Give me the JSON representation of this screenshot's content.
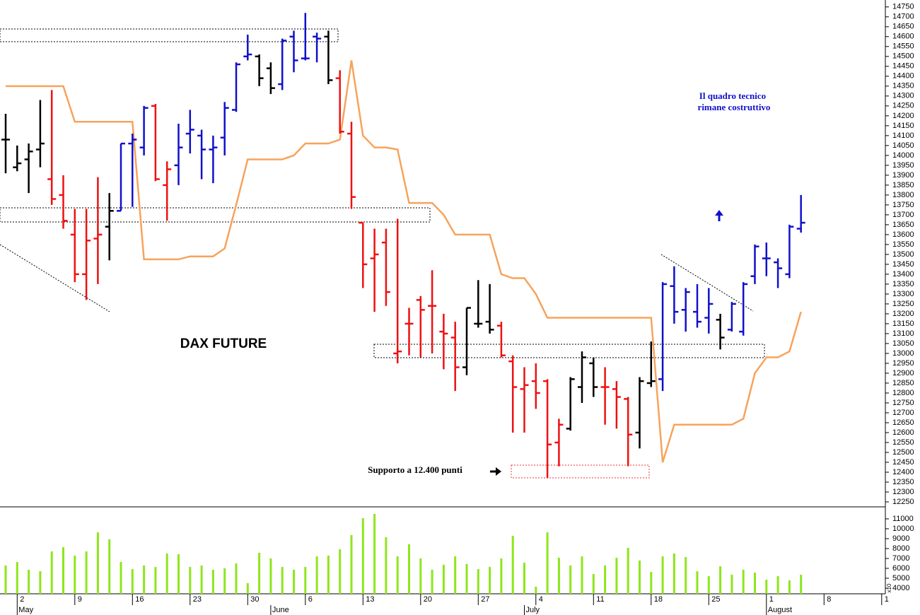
{
  "chart_data": [
    {
      "type": "ohlc",
      "title": "DAX FUTURE",
      "note": [
        "Il quadro tecnico",
        "rimane costruttivo"
      ],
      "support_note": "Supporto a 12.400 punti",
      "open": [
        14080,
        13940,
        13980,
        14030,
        13880,
        13800,
        13600,
        13400,
        13580,
        13640,
        13720,
        14060,
        14040,
        14250,
        13850,
        13950,
        14110,
        14100,
        14030,
        14090,
        14230,
        14500,
        14500,
        14440,
        14360,
        14600,
        14490,
        14600,
        14600,
        14390,
        14110,
        13660,
        13480,
        13560,
        13000,
        13150,
        13270,
        13240,
        13110,
        13080,
        12930,
        13150,
        13160,
        13140,
        12960,
        12820,
        12860,
        12860,
        12550,
        12620,
        12830,
        12950,
        12830,
        12820,
        12770,
        12600,
        12850,
        12870,
        13340,
        13220,
        13210,
        13180,
        13170,
        13120,
        13110,
        13390,
        13480,
        13460,
        13400,
        13630
      ],
      "high": [
        14210,
        14050,
        14060,
        14280,
        14330,
        13900,
        13730,
        13730,
        13890,
        13810,
        14060,
        14110,
        14250,
        14260,
        13970,
        14160,
        14230,
        14130,
        14100,
        14270,
        14470,
        14610,
        14510,
        14470,
        14590,
        14630,
        14720,
        14620,
        14630,
        14430,
        14170,
        13660,
        13630,
        13630,
        13680,
        13230,
        13290,
        13420,
        13200,
        13160,
        13230,
        13370,
        13350,
        13160,
        12990,
        12930,
        12950,
        12870,
        12670,
        12880,
        13010,
        12980,
        12930,
        12860,
        12780,
        12880,
        13060,
        13360,
        13440,
        13330,
        13350,
        13330,
        13200,
        13260,
        13360,
        13550,
        13560,
        13480,
        13650,
        13800
      ],
      "low": [
        13910,
        13920,
        13810,
        13940,
        13750,
        13630,
        13360,
        13270,
        13350,
        13470,
        13720,
        13740,
        14000,
        13870,
        13670,
        13850,
        14010,
        13880,
        13860,
        14000,
        14220,
        14480,
        14350,
        14310,
        14330,
        14420,
        14480,
        14470,
        14360,
        14110,
        13730,
        13330,
        13210,
        13240,
        12950,
        12990,
        12980,
        13000,
        12920,
        12810,
        12890,
        13130,
        13100,
        12980,
        12600,
        12600,
        12720,
        12370,
        12430,
        12610,
        12750,
        12780,
        12640,
        12620,
        12430,
        12520,
        12830,
        12810,
        13150,
        13110,
        13130,
        13100,
        13020,
        13110,
        13090,
        13350,
        13390,
        13330,
        13380,
        13610
      ],
      "close": [
        14080,
        13960,
        14020,
        14060,
        13780,
        13670,
        13400,
        13570,
        13600,
        13720,
        14060,
        14080,
        14240,
        13880,
        13930,
        14040,
        14130,
        14030,
        14040,
        14240,
        14460,
        14510,
        14390,
        14340,
        14580,
        14480,
        14490,
        14590,
        14380,
        14120,
        13790,
        13450,
        13500,
        13310,
        13010,
        13150,
        13220,
        13240,
        13100,
        12930,
        13230,
        13150,
        13120,
        12990,
        12830,
        12840,
        12800,
        12540,
        12640,
        12870,
        12980,
        12830,
        12830,
        12780,
        12590,
        12860,
        12860,
        13350,
        13210,
        13310,
        13160,
        13250,
        13080,
        13250,
        13350,
        13540,
        13480,
        13430,
        13640,
        13660
      ],
      "colors": [
        "#000000",
        "#000000",
        "#000000",
        "#000000",
        "#ee1111",
        "#ee1111",
        "#ee1111",
        "#ee1111",
        "#ee1111",
        "#000000",
        "#1010cc",
        "#1010cc",
        "#1010cc",
        "#ee1111",
        "#ee1111",
        "#1010cc",
        "#1010cc",
        "#1010cc",
        "#1010cc",
        "#1010cc",
        "#1010cc",
        "#1010cc",
        "#000000",
        "#000000",
        "#1010cc",
        "#1010cc",
        "#1010cc",
        "#1010cc",
        "#000000",
        "#ee1111",
        "#ee1111",
        "#ee1111",
        "#ee1111",
        "#ee1111",
        "#ee1111",
        "#ee1111",
        "#ee1111",
        "#ee1111",
        "#ee1111",
        "#ee1111",
        "#000000",
        "#000000",
        "#000000",
        "#ee1111",
        "#ee1111",
        "#ee1111",
        "#ee1111",
        "#ee1111",
        "#ee1111",
        "#000000",
        "#000000",
        "#000000",
        "#ee1111",
        "#ee1111",
        "#ee1111",
        "#000000",
        "#000000",
        "#1010cc",
        "#1010cc",
        "#1010cc",
        "#1010cc",
        "#1010cc",
        "#000000",
        "#1010cc",
        "#1010cc",
        "#1010cc",
        "#1010cc",
        "#1010cc",
        "#1010cc",
        "#1010cc"
      ],
      "line": {
        "color": "#f7a35c",
        "values": [
          14350,
          14350,
          14350,
          14350,
          14350,
          14350,
          14170,
          14170,
          14170,
          14170,
          14170,
          14170,
          13475,
          13475,
          13475,
          13475,
          13490,
          13490,
          13490,
          13530,
          13750,
          13980,
          13980,
          13980,
          13980,
          14000,
          14060,
          14060,
          14060,
          14080,
          14480,
          14100,
          14040,
          14040,
          14030,
          13760,
          13760,
          13760,
          13700,
          13600,
          13600,
          13600,
          13600,
          13400,
          13380,
          13380,
          13300,
          13180,
          13180,
          13180,
          13180,
          13180,
          13180,
          13180,
          13180,
          13180,
          13180,
          12450,
          12640,
          12640,
          12640,
          12640,
          12640,
          12640,
          12670,
          12900,
          12980,
          12980,
          13010,
          13210
        ]
      },
      "ylim": [
        12225,
        14785
      ],
      "yticks": [
        12250,
        12300,
        12350,
        12400,
        12450,
        12500,
        12550,
        12600,
        12650,
        12700,
        12750,
        12800,
        12850,
        12900,
        12950,
        13000,
        13050,
        13100,
        13150,
        13200,
        13250,
        13300,
        13350,
        13400,
        13450,
        13500,
        13550,
        13600,
        13650,
        13700,
        13750,
        13800,
        13850,
        13900,
        13950,
        14000,
        14050,
        14100,
        14150,
        14200,
        14250,
        14300,
        14350,
        14400,
        14450,
        14500,
        14550,
        14600,
        14650,
        14700,
        14750
      ]
    },
    {
      "type": "bar",
      "color": "#8ee61a",
      "ylabel": "x10",
      "categories": [
        null,
        "2",
        null,
        null,
        null,
        null,
        "9",
        null,
        null,
        null,
        null,
        "16",
        null,
        null,
        null,
        null,
        "23",
        null,
        null,
        null,
        null,
        "30",
        null,
        null,
        null,
        null,
        "6",
        null,
        null,
        null,
        null,
        "13",
        null,
        null,
        null,
        null,
        "20",
        null,
        null,
        null,
        null,
        "27",
        null,
        null,
        null,
        null,
        "4",
        null,
        null,
        null,
        null,
        "11",
        null,
        null,
        null,
        null,
        "18",
        null,
        null,
        null,
        null,
        "25",
        null,
        null,
        null,
        null,
        "1",
        null,
        null,
        null,
        null,
        "8",
        null,
        null,
        null,
        null,
        "1"
      ],
      "months": [
        null,
        "May",
        null,
        null,
        null,
        null,
        null,
        null,
        null,
        null,
        null,
        null,
        null,
        null,
        null,
        null,
        null,
        null,
        null,
        null,
        null,
        null,
        null,
        "June",
        null,
        null,
        null,
        null,
        null,
        null,
        null,
        null,
        null,
        null,
        null,
        null,
        null,
        null,
        null,
        null,
        null,
        null,
        null,
        null,
        null,
        "July",
        null,
        null,
        null,
        null,
        null,
        null,
        null,
        null,
        null,
        null,
        null,
        null,
        null,
        null,
        null,
        null,
        null,
        null,
        null,
        null,
        "August",
        null,
        null,
        null,
        null,
        null,
        null,
        null,
        null,
        null,
        null
      ],
      "values": [
        6290,
        6640,
        5860,
        5710,
        7710,
        8140,
        7290,
        7710,
        9640,
        8930,
        6640,
        5930,
        6290,
        6140,
        7500,
        7430,
        6140,
        6290,
        5860,
        6000,
        6500,
        4500,
        7570,
        7000,
        6140,
        5860,
        6140,
        7210,
        7290,
        7930,
        9360,
        11070,
        11500,
        9140,
        7210,
        8430,
        7000,
        5860,
        6360,
        7210,
        6430,
        5930,
        6140,
        7000,
        9290,
        6570,
        4140,
        9640,
        7070,
        6290,
        7210,
        5430,
        6290,
        7070,
        8070,
        6790,
        5640,
        7210,
        7500,
        7140,
        5710,
        5210,
        6210,
        5360,
        5860,
        5570,
        4860,
        5210,
        4790,
        5360,
        null,
        null,
        null,
        null,
        null,
        null,
        null
      ],
      "ylim": [
        3430,
        12140
      ],
      "yticks": [
        4000,
        5000,
        6000,
        7000,
        8000,
        9000,
        10000,
        11000
      ]
    }
  ]
}
